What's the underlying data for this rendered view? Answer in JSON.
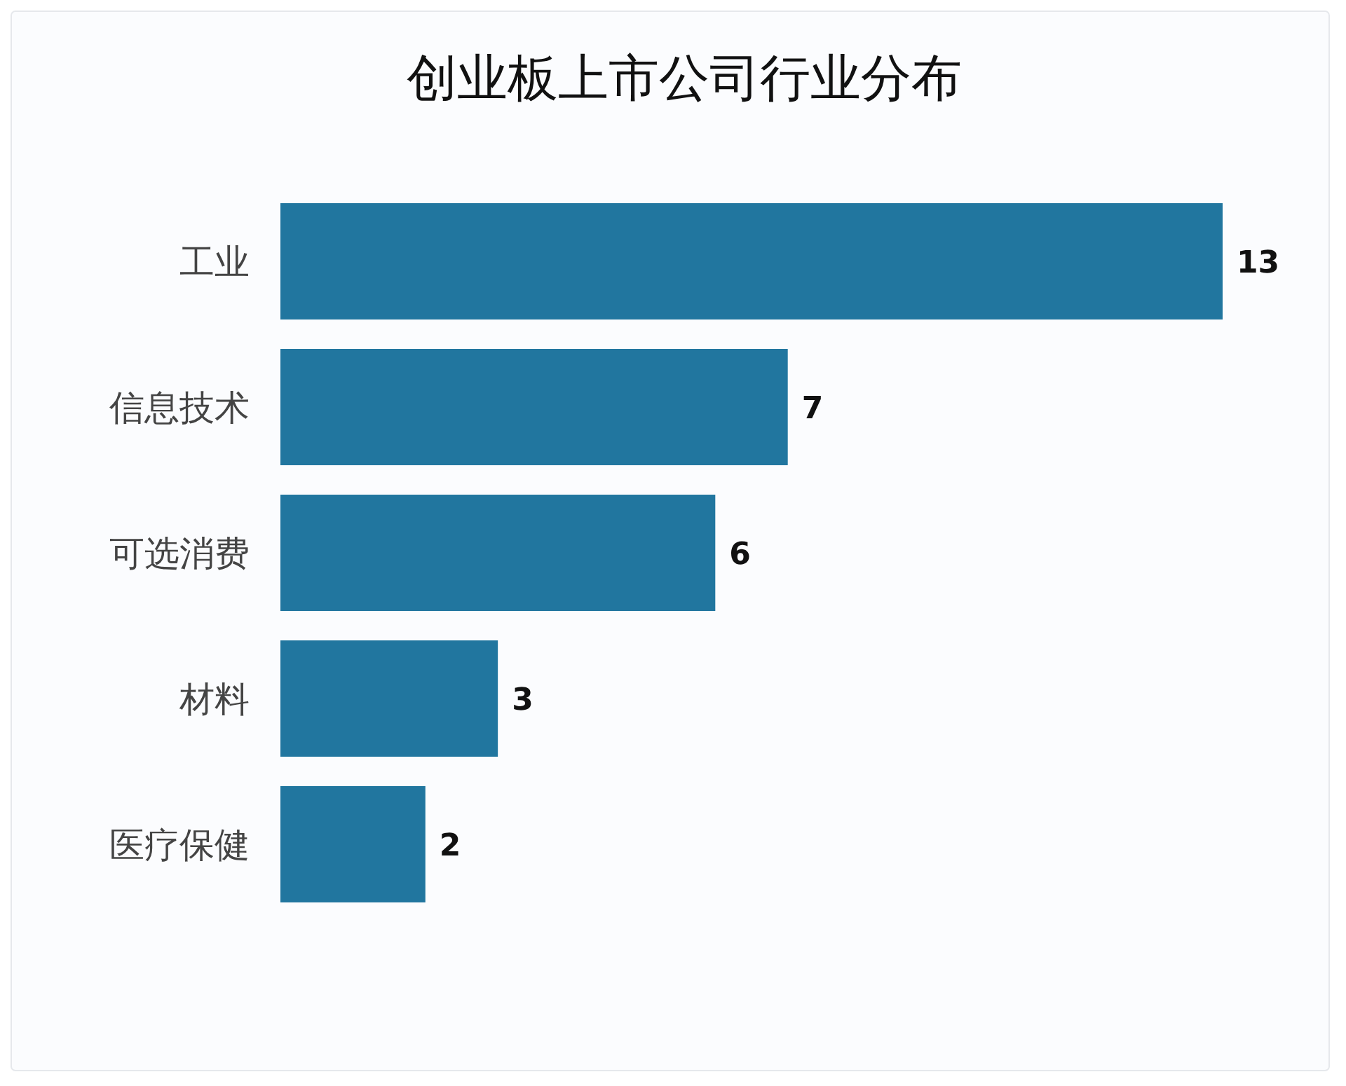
{
  "chart_data": {
    "type": "bar",
    "orientation": "horizontal",
    "title": "创业板上市公司行业分布",
    "categories": [
      "工业",
      "信息技术",
      "可选消费",
      "材料",
      "医疗保健"
    ],
    "values": [
      13,
      7,
      6,
      3,
      2
    ],
    "color": "#21769f",
    "data_labels": true
  }
}
